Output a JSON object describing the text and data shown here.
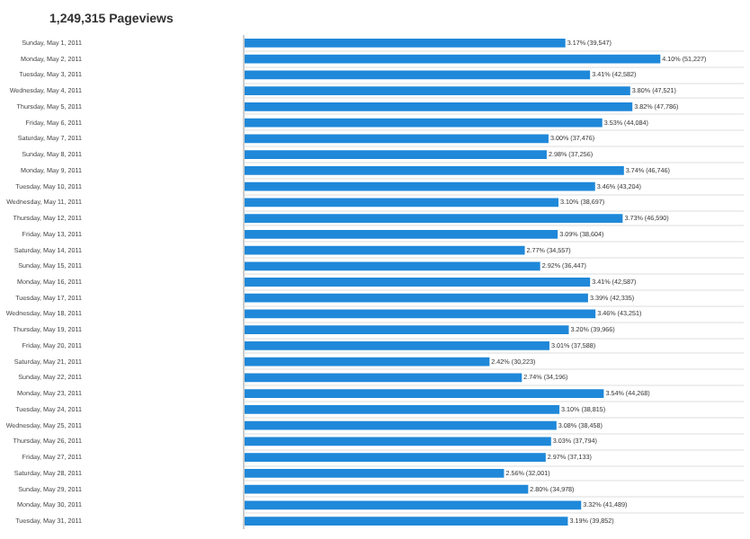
{
  "chart_data": {
    "type": "bar",
    "orientation": "horizontal",
    "title": "1,249,315 Pageviews",
    "color": "#1f88d9",
    "grid": "y",
    "categories": [
      "Sunday, May 1, 2011",
      "Monday, May 2, 2011",
      "Tuesday, May 3, 2011",
      "Wednesday, May 4, 2011",
      "Thursday, May 5, 2011",
      "Friday, May 6, 2011",
      "Saturday, May 7, 2011",
      "Sunday, May 8, 2011",
      "Monday, May 9, 2011",
      "Tuesday, May 10, 2011",
      "Wednesday, May 11, 2011",
      "Thursday, May 12, 2011",
      "Friday, May 13, 2011",
      "Saturday, May 14, 2011",
      "Sunday, May 15, 2011",
      "Monday, May 16, 2011",
      "Tuesday, May 17, 2011",
      "Wednesday, May 18, 2011",
      "Thursday, May 19, 2011",
      "Friday, May 20, 2011",
      "Saturday, May 21, 2011",
      "Sunday, May 22, 2011",
      "Monday, May 23, 2011",
      "Tuesday, May 24, 2011",
      "Wednesday, May 25, 2011",
      "Thursday, May 26, 2011",
      "Friday, May 27, 2011",
      "Saturday, May 28, 2011",
      "Sunday, May 29, 2011",
      "Monday, May 30, 2011",
      "Tuesday, May 31, 2011"
    ],
    "values": [
      39547,
      51227,
      42582,
      47521,
      47786,
      44084,
      37476,
      37256,
      46746,
      43204,
      38697,
      46590,
      38604,
      34557,
      36447,
      42587,
      42335,
      43251,
      39966,
      37588,
      30223,
      34196,
      44268,
      38815,
      38458,
      37794,
      37133,
      32001,
      34978,
      41489,
      39852
    ],
    "value_labels": [
      "3.17% (39,547)",
      "4.10% (51,227)",
      "3.41% (42,582)",
      "3.80% (47,521)",
      "3.82% (47,786)",
      "3.53% (44,084)",
      "3.00% (37,476)",
      "2.98% (37,256)",
      "3.74% (46,746)",
      "3.46% (43,204)",
      "3.10% (38,697)",
      "3.73% (46,590)",
      "3.09% (38,604)",
      "2.77% (34,557)",
      "2.92% (36,447)",
      "3.41% (42,587)",
      "3.39% (42,335)",
      "3.46% (43,251)",
      "3.20% (39,966)",
      "3.01% (37,588)",
      "2.42% (30,223)",
      "2.74% (34,196)",
      "3.54% (44,268)",
      "3.10% (38,815)",
      "3.08% (38,458)",
      "3.03% (37,794)",
      "2.97% (37,133)",
      "2.56% (32,001)",
      "2.80% (34,978)",
      "3.32% (41,489)",
      "3.19% (39,852)"
    ]
  }
}
